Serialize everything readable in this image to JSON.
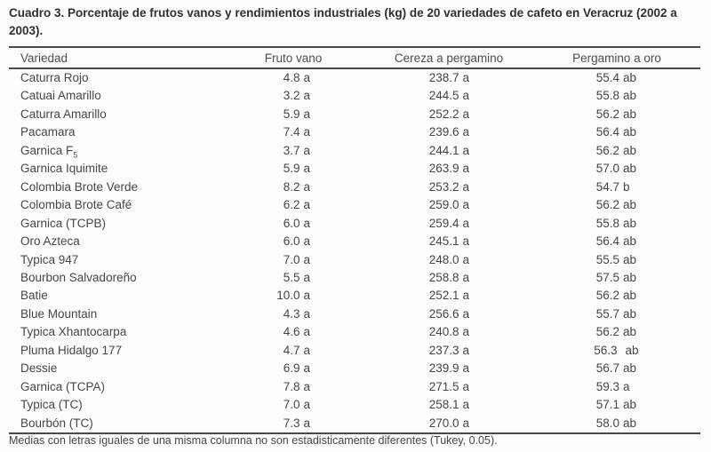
{
  "document": {
    "caption": "Cuadro 3. Porcentaje de frutos vanos y rendimientos industriales (kg) de 20 variedades de cafeto en Veracruz (2002 a 2003).",
    "footnote": "Medias con letras iguales de una misma columna no son estadisticamente diferentes (Tukey, 0.05)."
  },
  "table": {
    "columns": [
      "Variedad",
      "Fruto vano",
      "Cereza a pergamino",
      "Pergamino a oro"
    ],
    "rows": [
      {
        "variedad": "Caturra Rojo",
        "fruto_vano": "4.8 a",
        "cereza_a_pergamino": "238.7 a",
        "pergamino_a_oro": "55.4 ab"
      },
      {
        "variedad": "Catuai Amarillo",
        "fruto_vano": "3.2 a",
        "cereza_a_pergamino": "244.5 a",
        "pergamino_a_oro": "55.8 ab"
      },
      {
        "variedad": "Caturra Amarillo",
        "fruto_vano": "5.9 a",
        "cereza_a_pergamino": "252.2 a",
        "pergamino_a_oro": "56.2 ab"
      },
      {
        "variedad": "Pacamara",
        "fruto_vano": "7.4 a",
        "cereza_a_pergamino": "239.6 a",
        "pergamino_a_oro": "56.4 ab"
      },
      {
        "variedad": "Garnica F",
        "variedad_sub": "5",
        "fruto_vano": "3.7 a",
        "cereza_a_pergamino": "244.1 a",
        "pergamino_a_oro": "56.2 ab"
      },
      {
        "variedad": "Garnica Iquimite",
        "fruto_vano": "5.9 a",
        "cereza_a_pergamino": "263.9 a",
        "pergamino_a_oro": "57.0 ab"
      },
      {
        "variedad": "Colombia Brote Verde",
        "fruto_vano": "8.2 a",
        "cereza_a_pergamino": "253.2 a",
        "pergamino_a_oro": "54.7 b"
      },
      {
        "variedad": "Colombia Brote Café",
        "fruto_vano": "6.2 a",
        "cereza_a_pergamino": "259.0 a",
        "pergamino_a_oro": "56.2 ab"
      },
      {
        "variedad": "Garnica (TCPB)",
        "fruto_vano": "6.0 a",
        "cereza_a_pergamino": "259.4 a",
        "pergamino_a_oro": "55.8 ab"
      },
      {
        "variedad": "Oro Azteca",
        "fruto_vano": "6.0 a",
        "cereza_a_pergamino": "245.1 a",
        "pergamino_a_oro": "56.4 ab"
      },
      {
        "variedad": "Typica 947",
        "fruto_vano": "7.0 a",
        "cereza_a_pergamino": "248.0 a",
        "pergamino_a_oro": "55.5 ab"
      },
      {
        "variedad": "Bourbon Salvadoreño",
        "fruto_vano": "5.5 a",
        "cereza_a_pergamino": "258.8 a",
        "pergamino_a_oro": "57.5 ab"
      },
      {
        "variedad": "Batie",
        "fruto_vano": "10.0 a",
        "cereza_a_pergamino": "252.1 a",
        "pergamino_a_oro": "56.2 ab"
      },
      {
        "variedad": "Blue Mountain",
        "fruto_vano": "4.3 a",
        "cereza_a_pergamino": "256.6 a",
        "pergamino_a_oro": "55.7 ab"
      },
      {
        "variedad": "Typica Xhantocarpa",
        "fruto_vano": "4.6 a",
        "cereza_a_pergamino": "240.8 a",
        "pergamino_a_oro": "56.2 ab"
      },
      {
        "variedad": "Pluma Hidalgo 177",
        "fruto_vano": "4.7 a",
        "cereza_a_pergamino": "237.3 a",
        "pergamino_a_oro": "56.3  ab"
      },
      {
        "variedad": "Dessie",
        "fruto_vano": "6.9 a",
        "cereza_a_pergamino": "239.9 a",
        "pergamino_a_oro": "56.7 ab"
      },
      {
        "variedad": "Garnica (TCPA)",
        "fruto_vano": "7.8 a",
        "cereza_a_pergamino": "271.5 a",
        "pergamino_a_oro": "59.3 a"
      },
      {
        "variedad": "Typica (TC)",
        "fruto_vano": "7.0 a",
        "cereza_a_pergamino": "258.1 a",
        "pergamino_a_oro": "57.1 ab"
      },
      {
        "variedad": "Bourbón (TC)",
        "fruto_vano": "7.3 a",
        "cereza_a_pergamino": "270.0 a",
        "pergamino_a_oro": "58.0 ab"
      }
    ]
  },
  "colors": {
    "background": "#fdfdfd",
    "rule": "#4a4a4a",
    "title_text": "#2f2f2f",
    "body_text": "#464646"
  }
}
